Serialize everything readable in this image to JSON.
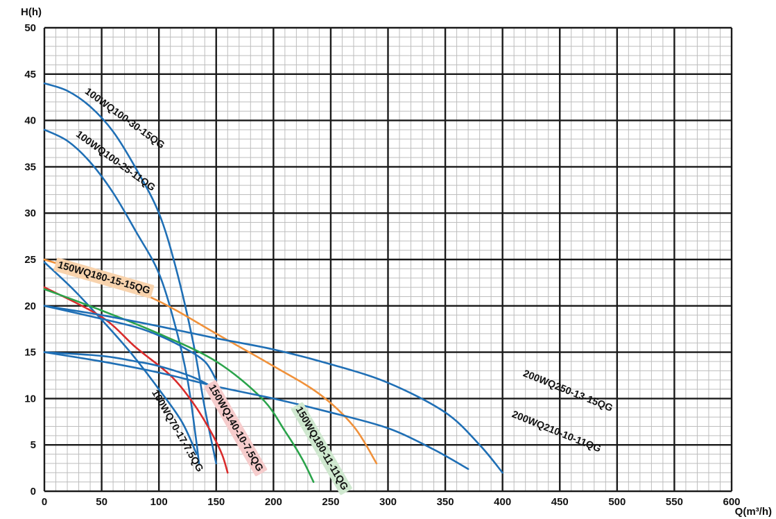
{
  "chart_data": {
    "type": "line",
    "title": "",
    "xlabel": "Q(m³/h)",
    "ylabel": "H(h)",
    "xlim": [
      0,
      600
    ],
    "ylim": [
      0,
      50
    ],
    "x_ticks": [
      0,
      50,
      100,
      150,
      200,
      250,
      300,
      350,
      400,
      450,
      500,
      550,
      600
    ],
    "y_ticks": [
      0,
      5,
      10,
      15,
      20,
      25,
      30,
      35,
      40,
      45,
      50
    ],
    "grid": true,
    "minor_grid": {
      "x_step": 10,
      "y_step": 1
    },
    "series": [
      {
        "name": "100WQ100-30-15QG",
        "color": "#1f6fb5",
        "points": [
          [
            0,
            44
          ],
          [
            20,
            43.2
          ],
          [
            40,
            41.5
          ],
          [
            60,
            38.8
          ],
          [
            80,
            34.8
          ],
          [
            100,
            30
          ],
          [
            115,
            24
          ],
          [
            130,
            16
          ],
          [
            140,
            9
          ],
          [
            150,
            3
          ]
        ]
      },
      {
        "name": "100WQ100-25-11QG",
        "color": "#1f6fb5",
        "points": [
          [
            0,
            39
          ],
          [
            20,
            37.8
          ],
          [
            40,
            35.5
          ],
          [
            60,
            32.2
          ],
          [
            80,
            28
          ],
          [
            100,
            23.5
          ],
          [
            115,
            17.5
          ],
          [
            125,
            12
          ],
          [
            132,
            6
          ],
          [
            135,
            3
          ]
        ]
      },
      {
        "name": "150WQ180-15-15QG",
        "color": "#f0913a",
        "points": [
          [
            0,
            25
          ],
          [
            50,
            23
          ],
          [
            100,
            20.5
          ],
          [
            150,
            17
          ],
          [
            200,
            13.5
          ],
          [
            240,
            10.5
          ],
          [
            270,
            7
          ],
          [
            290,
            3
          ]
        ]
      },
      {
        "name": "100WQ70-17-7.5QG",
        "color": "#1f6fb5",
        "points": [
          [
            0,
            24.7
          ],
          [
            25,
            21.8
          ],
          [
            50,
            18.5
          ],
          [
            75,
            15
          ],
          [
            100,
            11
          ],
          [
            120,
            7.5
          ],
          [
            133,
            4
          ]
        ]
      },
      {
        "name": "150WQ140-10-7.5QG",
        "color": "#d92b2b",
        "points": [
          [
            0,
            22
          ],
          [
            50,
            18.8
          ],
          [
            80,
            15.5
          ],
          [
            110,
            12.5
          ],
          [
            130,
            9.5
          ],
          [
            145,
            6.5
          ],
          [
            155,
            4
          ],
          [
            160,
            2
          ]
        ]
      },
      {
        "name": "150WQ180-11-11QG",
        "color": "#2aa34a",
        "points": [
          [
            0,
            21.8
          ],
          [
            50,
            19.5
          ],
          [
            100,
            17
          ],
          [
            150,
            14
          ],
          [
            190,
            10
          ],
          [
            210,
            6.5
          ],
          [
            225,
            3.5
          ],
          [
            235,
            1
          ]
        ]
      },
      {
        "name": "200WQ250-13-15QG",
        "color": "#1f6fb5",
        "points": [
          [
            0,
            20
          ],
          [
            50,
            19
          ],
          [
            100,
            17.8
          ],
          [
            150,
            16.5
          ],
          [
            200,
            15.3
          ],
          [
            250,
            13.7
          ],
          [
            300,
            11.7
          ],
          [
            350,
            8.5
          ],
          [
            380,
            5
          ],
          [
            400,
            2
          ]
        ]
      },
      {
        "name": "200WQ210-10-11QG",
        "color": "#1f6fb5",
        "points": [
          [
            0,
            15
          ],
          [
            50,
            14
          ],
          [
            100,
            12.8
          ],
          [
            150,
            11.3
          ],
          [
            200,
            10
          ],
          [
            250,
            8.5
          ],
          [
            300,
            6.8
          ],
          [
            340,
            4.5
          ],
          [
            370,
            2.4
          ]
        ]
      },
      {
        "name": "",
        "color": "#1f6fb5",
        "points": [
          [
            0,
            20
          ],
          [
            50,
            18.6
          ],
          [
            80,
            17.7
          ],
          [
            100,
            16.8
          ],
          [
            120,
            15.6
          ],
          [
            140,
            14
          ],
          [
            150,
            12
          ]
        ]
      },
      {
        "name": "",
        "color": "#1f6fb5",
        "points": [
          [
            0,
            15
          ],
          [
            50,
            14.6
          ],
          [
            80,
            14
          ],
          [
            100,
            13.5
          ],
          [
            130,
            12.3
          ],
          [
            150,
            11
          ]
        ]
      }
    ],
    "annotations": [
      {
        "text": "100WQ100-30-15QG",
        "series": 0,
        "x": 70,
        "y": 40.2,
        "angle": 36,
        "highlight": ""
      },
      {
        "text": "100WQ100-25-11QG",
        "series": 1,
        "x": 62,
        "y": 35.6,
        "angle": 36,
        "highlight": ""
      },
      {
        "text": "150WQ180-15-15QG",
        "series": 2,
        "x": 52,
        "y": 23,
        "angle": 16,
        "highlight": "#f8d3ad"
      },
      {
        "text": "100WQ70-17-7.5QG",
        "series": 3,
        "x": 116,
        "y": 6.5,
        "angle": 60,
        "highlight": ""
      },
      {
        "text": "150WQ140-10-7.5QG",
        "series": 4,
        "x": 167,
        "y": 6.8,
        "angle": 60,
        "highlight": "#f6cccc"
      },
      {
        "text": "150WQ180-11-11QG",
        "series": 5,
        "x": 242,
        "y": 4.6,
        "angle": 60,
        "highlight": "#cfe8cf"
      },
      {
        "text": "200WQ250-13-15QG",
        "series": 6,
        "x": 457,
        "y": 10.8,
        "angle": 22,
        "highlight": ""
      },
      {
        "text": "200WQ210-10-11QG",
        "series": 7,
        "x": 447,
        "y": 6.4,
        "angle": 22,
        "highlight": ""
      }
    ]
  }
}
